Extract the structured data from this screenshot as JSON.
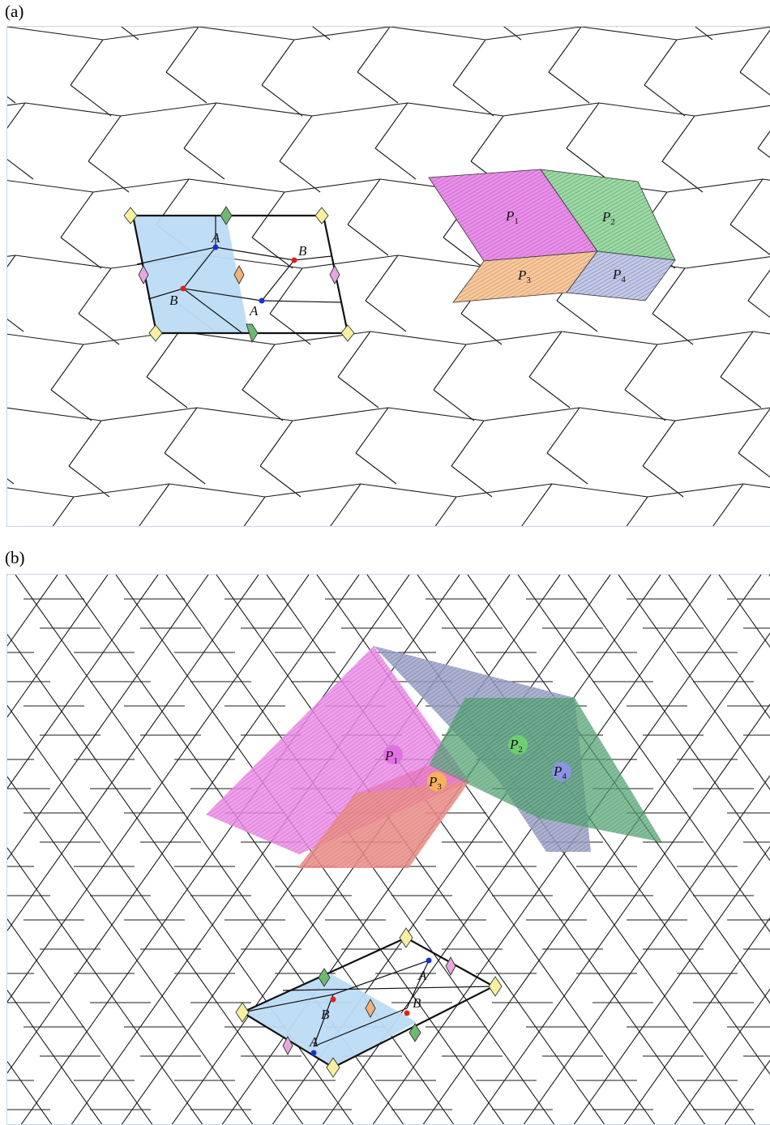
{
  "panel_a": {
    "label": "(a)",
    "vertex_labels": [
      "A",
      "B",
      "B",
      "A"
    ],
    "pieces": [
      {
        "letter": "P",
        "sub": "1",
        "color": "#e07ae0"
      },
      {
        "letter": "P",
        "sub": "2",
        "color": "#6fc07a"
      },
      {
        "letter": "P",
        "sub": "3",
        "color": "#f2b27a"
      },
      {
        "letter": "P",
        "sub": "4",
        "color": "#9aa3c9"
      }
    ]
  },
  "panel_b": {
    "label": "(b)",
    "vertex_labels": [
      "A",
      "B",
      "B",
      "A"
    ],
    "pieces": [
      {
        "letter": "P",
        "sub": "1",
        "color": "#e07ae0"
      },
      {
        "letter": "P",
        "sub": "2",
        "color": "#6fc07a"
      },
      {
        "letter": "P",
        "sub": "3",
        "color": "#f2b27a"
      },
      {
        "letter": "P",
        "sub": "4",
        "color": "#8d93d6"
      }
    ]
  },
  "colors": {
    "cell_fill": "#bcdcf5",
    "diamond_yellow": "#f6f0a0",
    "diamond_green": "#6fb86f",
    "diamond_pink": "#e8a6e0",
    "diamond_orange": "#f2b27a",
    "point_a": "#1a2fd6",
    "point_b": "#e02020"
  }
}
